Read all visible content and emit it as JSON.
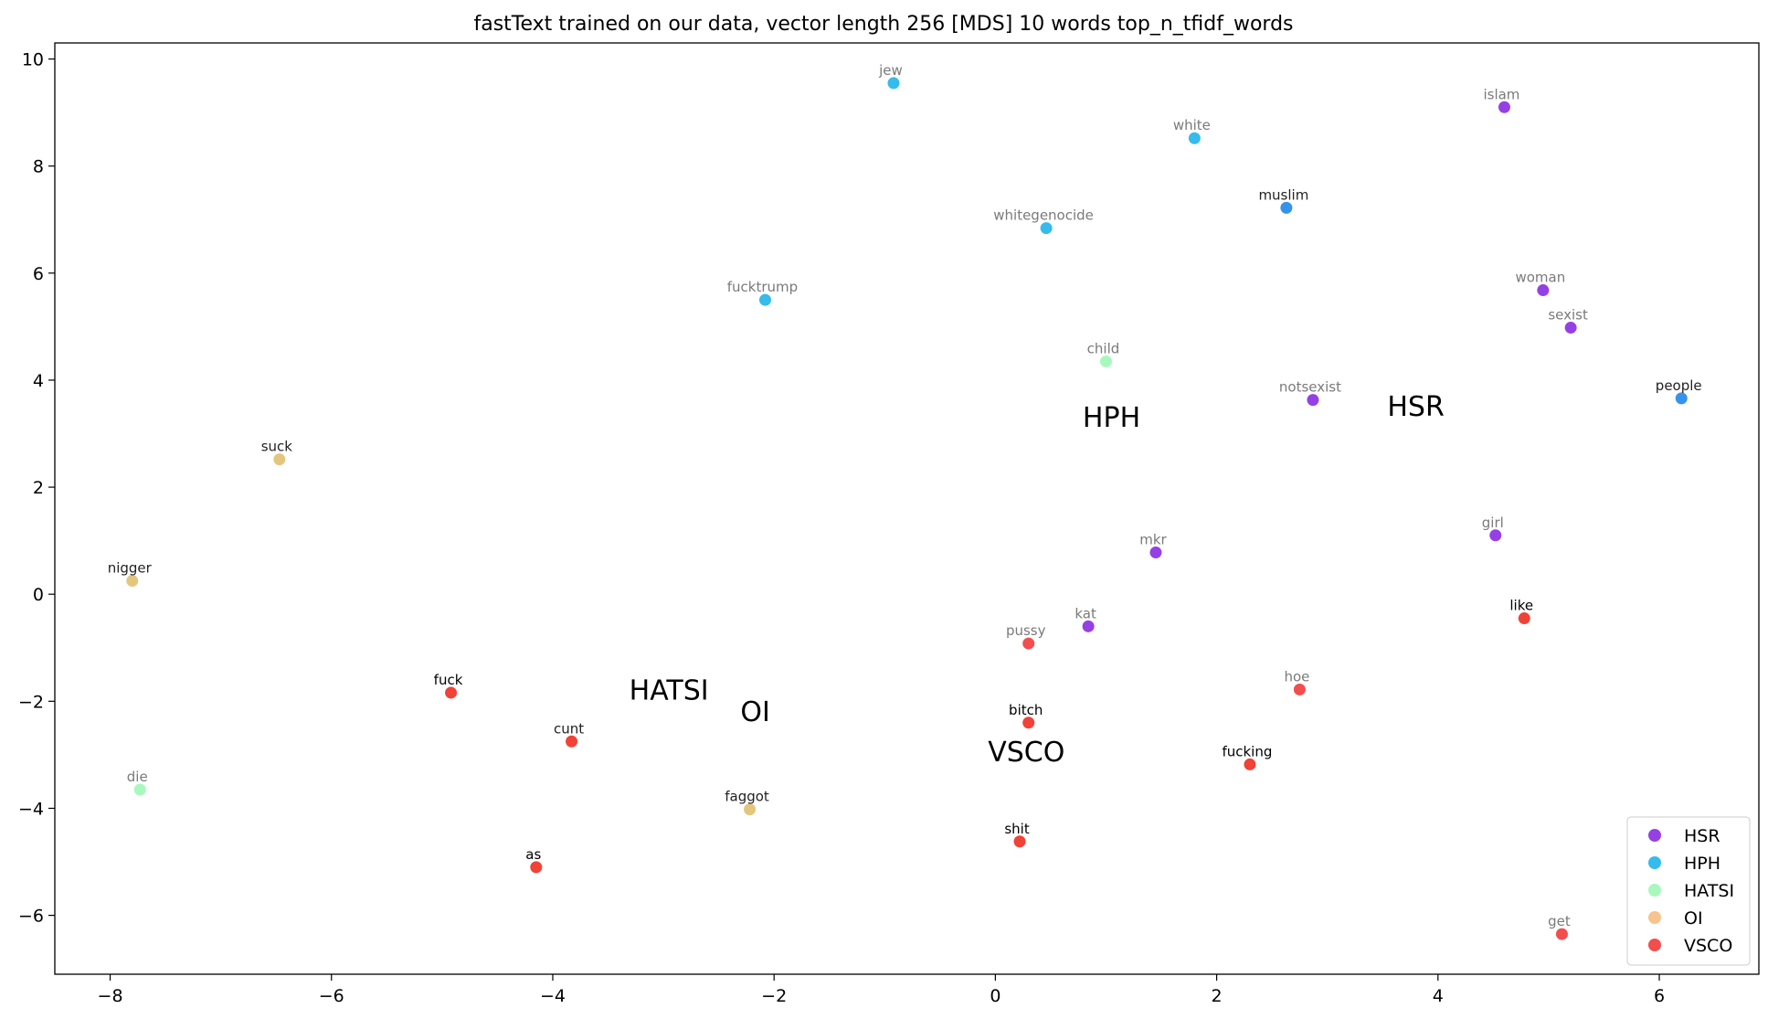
{
  "chart_data": {
    "type": "scatter",
    "title": "fastText trained on our data, vector length 256 [MDS] 10 words top_n_tfidf_words",
    "xlabel": "",
    "ylabel": "",
    "xlim": [
      -8.5,
      6.9
    ],
    "ylim": [
      -7.1,
      10.3
    ],
    "xticks": [
      -8,
      -6,
      -4,
      -2,
      0,
      2,
      4,
      6
    ],
    "yticks": [
      -6,
      -4,
      -2,
      0,
      2,
      4,
      6,
      8,
      10
    ],
    "tick_labels": {
      "x": [
        "−8",
        "−6",
        "−4",
        "−2",
        "0",
        "2",
        "4",
        "6"
      ],
      "y": [
        "−6",
        "−4",
        "−2",
        "0",
        "2",
        "4",
        "6",
        "8",
        "10"
      ]
    },
    "grid": false,
    "legend_position": "bottom-right",
    "series": [
      {
        "name": "HSR",
        "color": "#8a2be2",
        "points": [
          {
            "label": "islam",
            "x": 4.6,
            "y": 9.1,
            "label_color": "#7a7a7a"
          },
          {
            "label": "woman",
            "x": 4.95,
            "y": 5.68,
            "label_color": "#7a7a7a"
          },
          {
            "label": "sexist",
            "x": 5.2,
            "y": 4.98,
            "label_color": "#7a7a7a"
          },
          {
            "label": "notsexist",
            "x": 2.87,
            "y": 3.63,
            "label_color": "#7a7a7a"
          },
          {
            "label": "girl",
            "x": 4.52,
            "y": 1.1,
            "label_color": "#7a7a7a"
          },
          {
            "label": "mkr",
            "x": 1.45,
            "y": 0.78,
            "label_color": "#7a7a7a"
          },
          {
            "label": "kat",
            "x": 0.84,
            "y": -0.6,
            "label_color": "#7a7a7a"
          }
        ]
      },
      {
        "name": "HPH",
        "color": "#1fb4ea",
        "points": [
          {
            "label": "jew",
            "x": -0.92,
            "y": 9.55,
            "label_color": "#7a7a7a"
          },
          {
            "label": "white",
            "x": 1.8,
            "y": 8.52,
            "label_color": "#7a7a7a"
          },
          {
            "label": "muslim",
            "x": 2.63,
            "y": 7.22,
            "label_color": "#222222",
            "color": "#1e88ea"
          },
          {
            "label": "whitegenocide",
            "x": 0.46,
            "y": 6.84,
            "label_color": "#7a7a7a"
          },
          {
            "label": "fucktrump",
            "x": -2.08,
            "y": 5.5,
            "label_color": "#7a7a7a"
          },
          {
            "label": "people",
            "x": 6.2,
            "y": 3.66,
            "label_color": "#222222",
            "color": "#1e88ea"
          }
        ]
      },
      {
        "name": "HATSI",
        "color": "#9ef7b7",
        "points": [
          {
            "label": "child",
            "x": 1.0,
            "y": 4.35,
            "label_color": "#7a7a7a"
          },
          {
            "label": "die",
            "x": -7.73,
            "y": -3.65,
            "label_color": "#7a7a7a"
          }
        ]
      },
      {
        "name": "OI",
        "color": "#f7bd7f",
        "points": [
          {
            "label": "suck",
            "x": -6.47,
            "y": 2.52,
            "label_color": "#222222",
            "color": "#e0c070"
          },
          {
            "label": "nigger",
            "x": -7.8,
            "y": 0.25,
            "label_color": "#222222",
            "color": "#e0c070"
          },
          {
            "label": "faggot",
            "x": -2.22,
            "y": -4.02,
            "label_color": "#222222",
            "color": "#e0c070"
          }
        ]
      },
      {
        "name": "VSCO",
        "color": "#f23a3a",
        "points": [
          {
            "label": "like",
            "x": 4.78,
            "y": -0.45,
            "label_color": "#000000",
            "color": "#ef2d20"
          },
          {
            "label": "pussy",
            "x": 0.3,
            "y": -0.92,
            "label_color": "#7a7a7a"
          },
          {
            "label": "hoe",
            "x": 2.75,
            "y": -1.78,
            "label_color": "#7a7a7a"
          },
          {
            "label": "fuck",
            "x": -4.92,
            "y": -1.84,
            "label_color": "#000000",
            "color": "#ef2d20"
          },
          {
            "label": "bitch",
            "x": 0.3,
            "y": -2.4,
            "label_color": "#000000",
            "color": "#ef2d20"
          },
          {
            "label": "cunt",
            "x": -3.83,
            "y": -2.75,
            "label_color": "#222222",
            "color": "#ef2d20"
          },
          {
            "label": "fucking",
            "x": 2.3,
            "y": -3.18,
            "label_color": "#000000",
            "color": "#ef2d20"
          },
          {
            "label": "shit",
            "x": 0.22,
            "y": -4.62,
            "label_color": "#000000",
            "color": "#ef2d20"
          },
          {
            "label": "as",
            "x": -4.15,
            "y": -5.1,
            "label_color": "#000000",
            "color": "#ef2d20"
          },
          {
            "label": "get",
            "x": 5.12,
            "y": -6.35,
            "label_color": "#7a7a7a"
          }
        ]
      }
    ],
    "cluster_labels": [
      {
        "text": "HPH",
        "x": 1.05,
        "y": 3.3
      },
      {
        "text": "HSR",
        "x": 3.8,
        "y": 3.5
      },
      {
        "text": "HATSI",
        "x": -2.95,
        "y": -1.8
      },
      {
        "text": "OI",
        "x": -2.17,
        "y": -2.2
      },
      {
        "text": "VSCO",
        "x": 0.28,
        "y": -2.95
      }
    ]
  }
}
